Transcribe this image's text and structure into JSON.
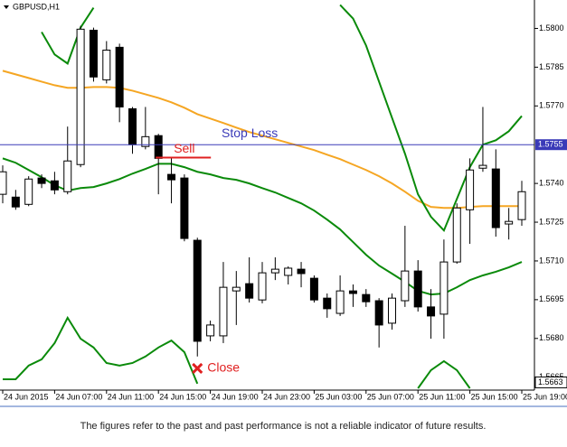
{
  "chart_data": {
    "type": "candlestick",
    "title": "GBPUSD,H1",
    "categories": [
      "24 Jun 2015",
      null,
      null,
      null,
      "24 Jun 07:00",
      null,
      null,
      null,
      "24 Jun 11:00",
      null,
      null,
      null,
      "24 Jun 15:00",
      null,
      null,
      null,
      "24 Jun 19:00",
      null,
      null,
      null,
      "24 Jun 23:00",
      null,
      null,
      null,
      "25 Jun 03:00",
      null,
      null,
      null,
      "25 Jun 07:00",
      null,
      null,
      null,
      "25 Jun 11:00",
      null,
      null,
      null,
      "25 Jun 15:00",
      null,
      null,
      null,
      "25 Jun 19:00"
    ],
    "open": [
      1.57358,
      1.57347,
      1.57319,
      1.57421,
      1.5741,
      1.57368,
      1.57473,
      1.57993,
      1.57801,
      1.57927,
      1.57689,
      1.57543,
      1.57585,
      1.57435,
      1.57421,
      1.5718,
      1.5681,
      1.5681,
      1.56984,
      1.57012,
      1.56949,
      1.57054,
      1.57044,
      1.57068,
      1.57033,
      1.56956,
      1.56897,
      1.56984,
      1.5697,
      1.56946,
      1.56859,
      1.56946,
      1.57061,
      1.56922,
      1.56894,
      1.57096,
      1.57298,
      1.57459,
      1.57456,
      1.57243,
      1.5726
    ],
    "high": [
      1.5747,
      1.57375,
      1.57428,
      1.57435,
      1.57445,
      1.5762,
      1.5801,
      1.58003,
      1.57951,
      1.57941,
      1.57696,
      1.57696,
      1.57592,
      1.57497,
      1.57435,
      1.5719,
      1.56869,
      1.57096,
      1.57061,
      1.57114,
      1.57096,
      1.57114,
      1.57079,
      1.57096,
      1.57044,
      1.56974,
      1.57044,
      1.57009,
      1.56991,
      1.56956,
      1.56974,
      1.57236,
      1.57103,
      1.56991,
      1.57183,
      1.57323,
      1.57497,
      1.57696,
      1.57532,
      1.57305,
      1.5741
    ],
    "low": [
      1.57323,
      1.57298,
      1.57312,
      1.57382,
      1.57358,
      1.57358,
      1.57463,
      1.57794,
      1.57787,
      1.57637,
      1.57515,
      1.57532,
      1.57358,
      1.57323,
      1.57176,
      1.5673,
      1.56789,
      1.56782,
      1.56852,
      1.56939,
      1.56936,
      1.57026,
      1.57009,
      1.56998,
      1.56939,
      1.5688,
      1.56887,
      1.56922,
      1.56922,
      1.56765,
      1.56834,
      1.56922,
      1.56904,
      1.56799,
      1.56799,
      1.57089,
      1.57166,
      1.57445,
      1.57194,
      1.57183,
      1.57236
    ],
    "close": [
      1.57445,
      1.57309,
      1.57417,
      1.574,
      1.57375,
      1.57487,
      1.57997,
      1.57812,
      1.57916,
      1.57696,
      1.5755,
      1.57581,
      1.57497,
      1.57414,
      1.57187,
      1.56789,
      1.56852,
      1.56998,
      1.56998,
      1.56956,
      1.57054,
      1.57068,
      1.57072,
      1.57051,
      1.56949,
      1.56915,
      1.56984,
      1.56974,
      1.56942,
      1.56852,
      1.56956,
      1.57061,
      1.56922,
      1.56887,
      1.57096,
      1.57305,
      1.57452,
      1.5747,
      1.57229,
      1.57253,
      1.57368
    ],
    "overlays": [
      {
        "color": "#f5a623",
        "values": [
          1.57836,
          1.57822,
          1.57808,
          1.57794,
          1.5778,
          1.5777,
          1.5777,
          1.57773,
          1.57773,
          1.5777,
          1.57759,
          1.57745,
          1.57731,
          1.57714,
          1.57693,
          1.57668,
          1.57651,
          1.57634,
          1.57616,
          1.57599,
          1.57585,
          1.57571,
          1.57557,
          1.57543,
          1.57529,
          1.57511,
          1.57494,
          1.57473,
          1.57452,
          1.57428,
          1.574,
          1.57368,
          1.57333,
          1.57309,
          1.57305,
          1.57305,
          1.57309,
          1.57312,
          1.57312,
          1.57312,
          1.57312
        ]
      },
      {
        "color": "#0a8a0a",
        "values": [
          1.57497,
          1.5748,
          1.57452,
          1.57424,
          1.57393,
          1.57372,
          1.57382,
          1.57386,
          1.574,
          1.57417,
          1.57438,
          1.57456,
          1.57476,
          1.57476,
          1.57463,
          1.57445,
          1.57435,
          1.57421,
          1.57414,
          1.574,
          1.57382,
          1.57365,
          1.57344,
          1.57323,
          1.57295,
          1.5726,
          1.57222,
          1.57173,
          1.57124,
          1.57082,
          1.57051,
          1.57019,
          1.56984,
          1.5697,
          1.56974,
          1.56998,
          1.57026,
          1.57044,
          1.57058,
          1.57075,
          1.57096
        ]
      },
      {
        "color": "#0a8a0a",
        "values": [
          null,
          null,
          null,
          1.57986,
          1.57899,
          1.57864,
          1.58003,
          1.5808,
          null,
          null,
          null,
          null,
          null,
          null,
          null,
          null,
          null,
          null,
          null,
          null,
          null,
          null,
          null,
          null,
          null,
          null,
          1.58091,
          1.58038,
          1.57934,
          1.57794,
          1.57654,
          1.57515,
          1.57358,
          1.57271,
          1.57218,
          1.5734,
          1.57463,
          1.5755,
          1.57567,
          1.57602,
          1.57661
        ]
      },
      {
        "color": "#0a8a0a",
        "values": [
          1.56642,
          1.56642,
          1.56695,
          1.56719,
          1.56782,
          1.5688,
          1.56799,
          1.56765,
          1.56705,
          1.56695,
          1.56705,
          1.5673,
          1.56765,
          1.56792,
          1.56747,
          1.56625,
          null,
          null,
          null,
          null,
          null,
          null,
          null,
          null,
          null,
          null,
          null,
          null,
          null,
          null,
          null,
          null,
          1.56607,
          1.56677,
          1.56712,
          1.56677,
          1.56607,
          null,
          null,
          null,
          null
        ]
      }
    ],
    "ylim": [
      1.566,
      1.5811
    ],
    "yticks": [
      {
        "value": 1.58,
        "label": "1.5800"
      },
      {
        "value": 1.5785,
        "label": "1.5785"
      },
      {
        "value": 1.577,
        "label": "1.5770"
      },
      {
        "value": 1.574,
        "label": "1.5740"
      },
      {
        "value": 1.5725,
        "label": "1.5725"
      },
      {
        "value": 1.571,
        "label": "1.5710"
      },
      {
        "value": 1.5695,
        "label": "1.5695"
      },
      {
        "value": 1.568,
        "label": "1.5680"
      },
      {
        "value": 1.5665,
        "label": "1.5665"
      }
    ],
    "stop_loss": {
      "label": "Stop Loss",
      "value": 1.5755,
      "value_label": "1.5755",
      "color": "#3a3ab8"
    },
    "price_marker": {
      "value": 1.5663,
      "label": "1.5663"
    },
    "sell": {
      "label": "Sell",
      "index": 12,
      "value": 1.575,
      "color": "#e02020"
    },
    "close_mark": {
      "label": "Close",
      "index": 15,
      "value": 1.56684,
      "color": "#e02020"
    },
    "footer": "The figures refer to the past and past performance is not a reliable indicator of future results."
  }
}
